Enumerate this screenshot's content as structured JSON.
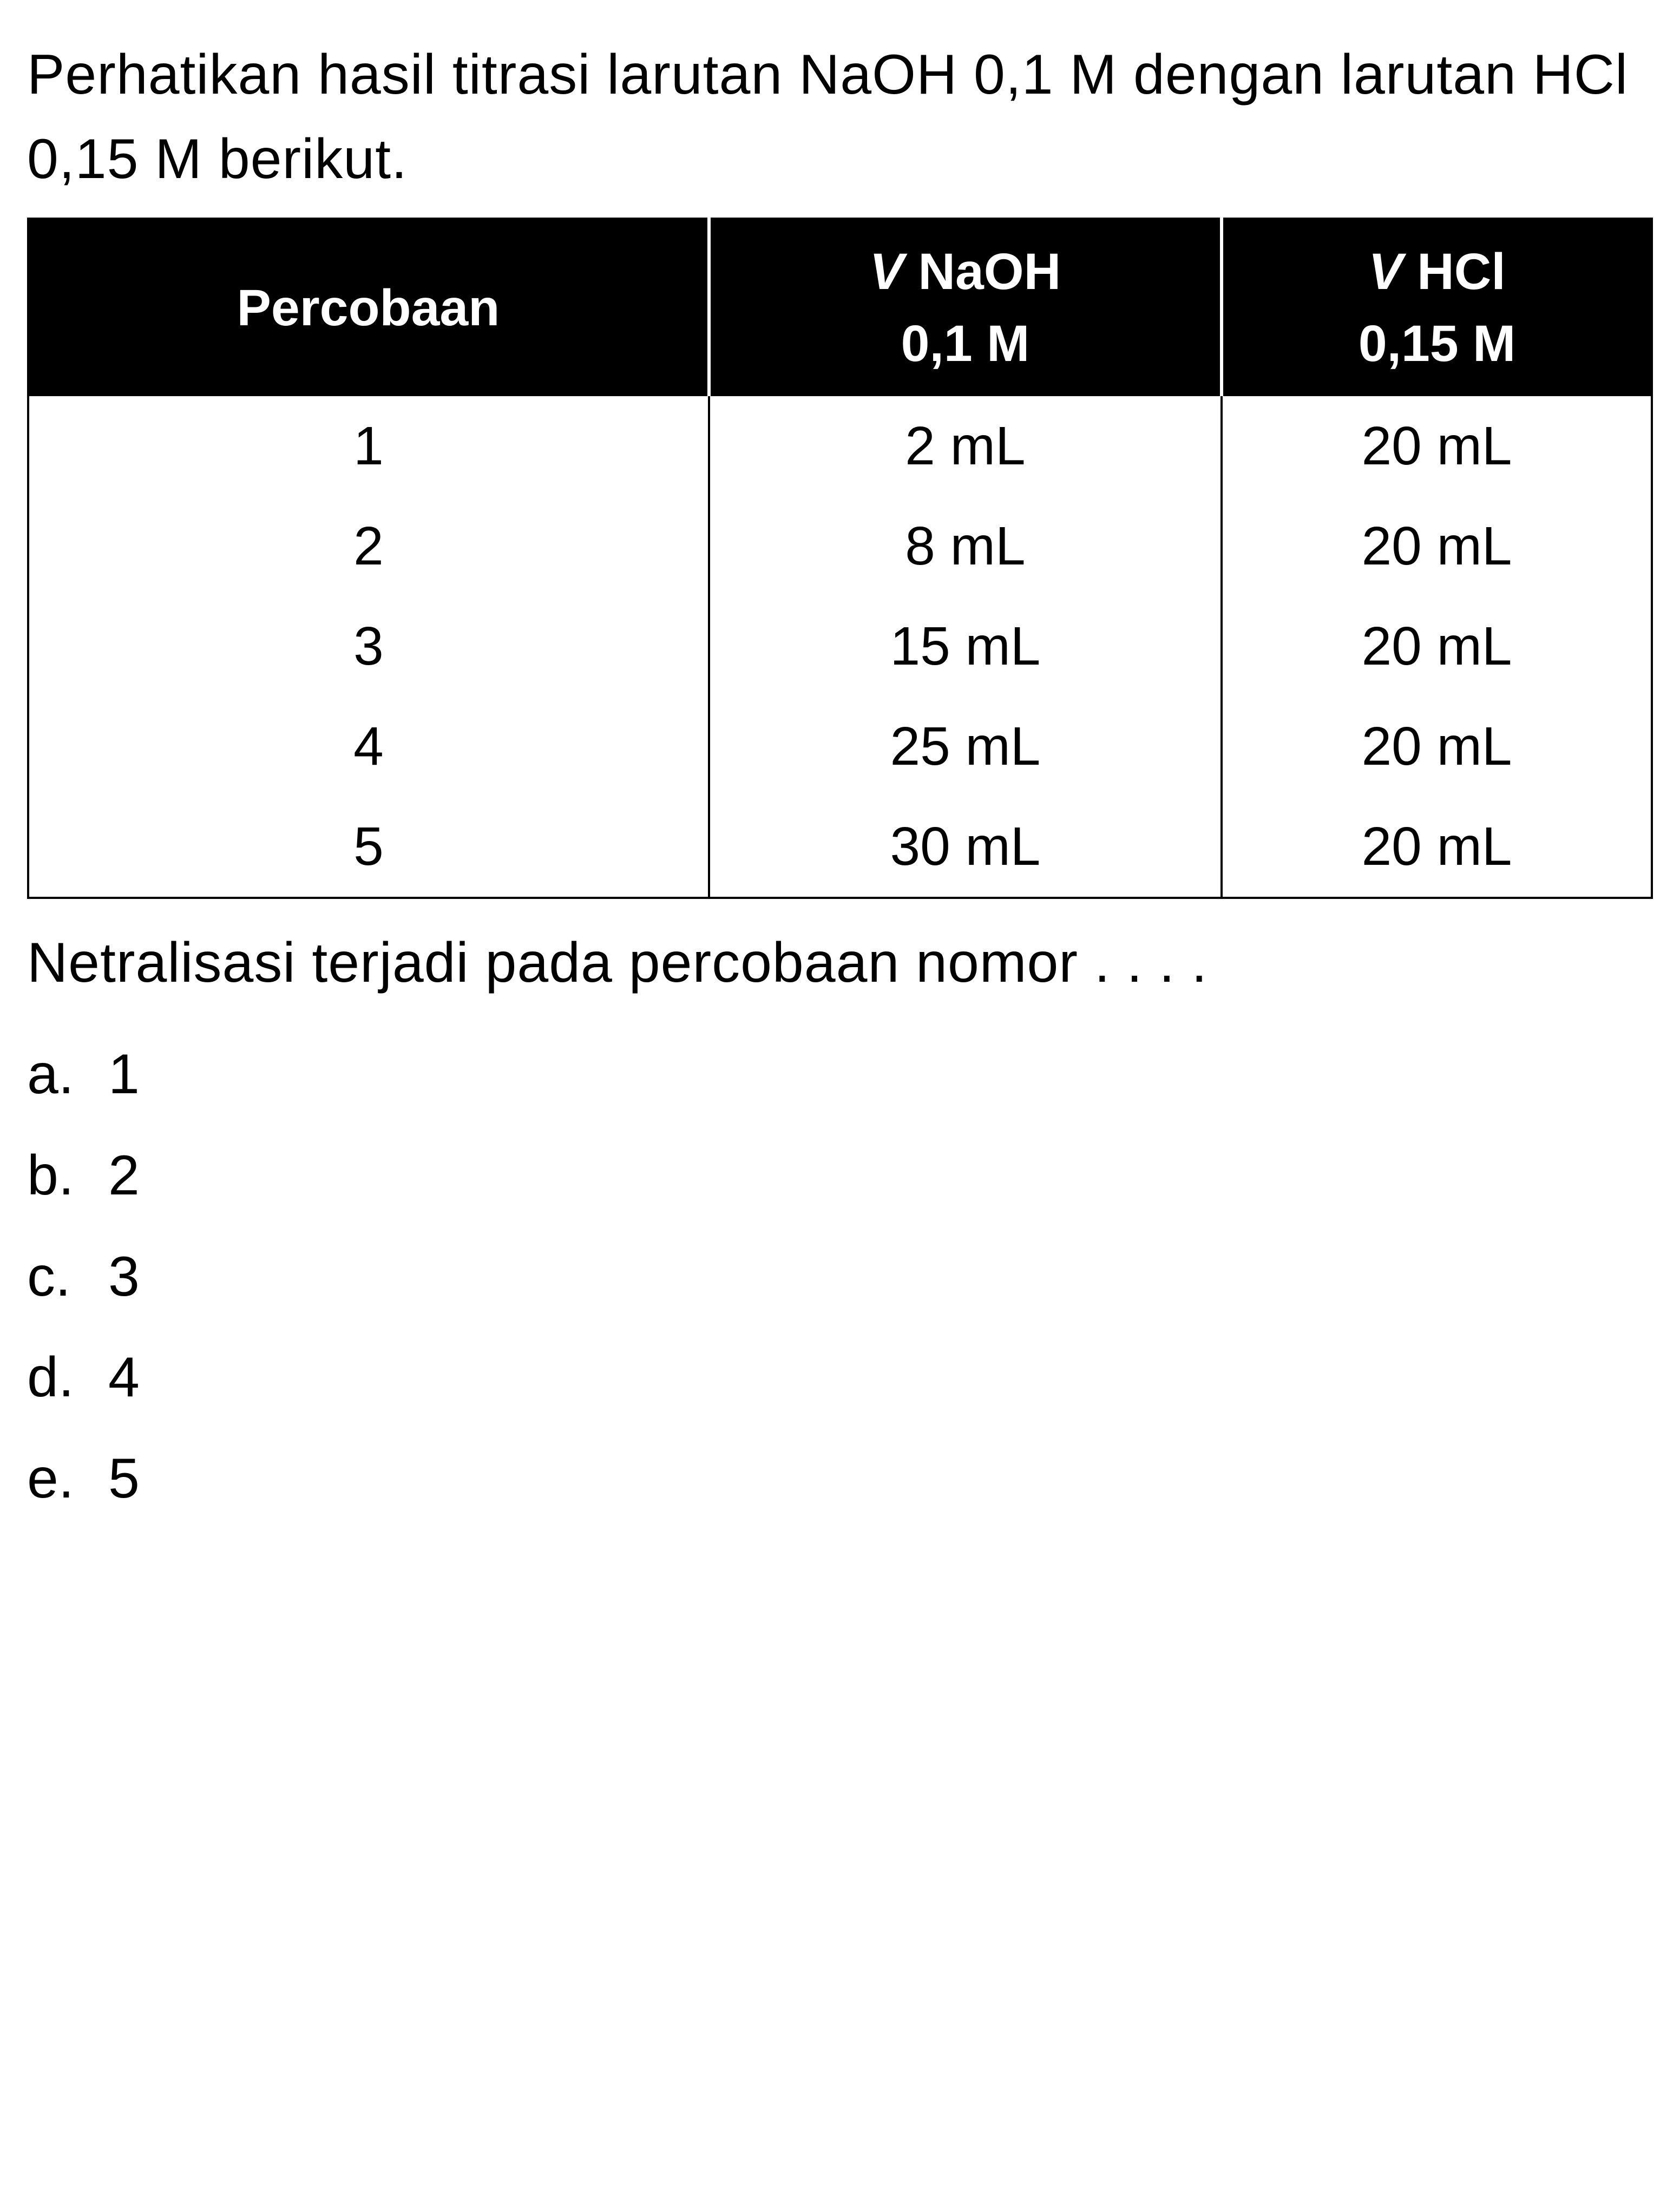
{
  "question": {
    "line1": "Perhatikan hasil titrasi larutan NaOH 0,1 M",
    "line2": "dengan larutan HCl 0,15 M berikut."
  },
  "table": {
    "headers": [
      {
        "line1": "Percobaan",
        "line2": ""
      },
      {
        "line1_prefix": "V",
        "line1_suffix": " NaOH",
        "line2": "0,1 M"
      },
      {
        "line1_prefix": "V",
        "line1_suffix": " HCl",
        "line2": "0,15 M"
      }
    ],
    "rows": [
      {
        "trial": "1",
        "naoh": "2 mL",
        "hcl": "20 mL"
      },
      {
        "trial": "2",
        "naoh": "8 mL",
        "hcl": "20 mL"
      },
      {
        "trial": "3",
        "naoh": "15 mL",
        "hcl": "20 mL"
      },
      {
        "trial": "4",
        "naoh": "25 mL",
        "hcl": "20 mL"
      },
      {
        "trial": "5",
        "naoh": "30 mL",
        "hcl": "20 mL"
      }
    ]
  },
  "followup": "Netralisasi terjadi pada percobaan nomor . . . .",
  "options": [
    {
      "letter": "a.",
      "value": "1"
    },
    {
      "letter": "b.",
      "value": "2"
    },
    {
      "letter": "c.",
      "value": "3"
    },
    {
      "letter": "d.",
      "value": "4"
    },
    {
      "letter": "e.",
      "value": "5"
    }
  ],
  "colors": {
    "background": "#ffffff",
    "text": "#000000",
    "header_bg": "#000000",
    "header_text": "#ffffff",
    "border": "#000000"
  },
  "typography": {
    "body_fontsize": 104,
    "table_header_fontsize": 95,
    "table_cell_fontsize": 100
  }
}
